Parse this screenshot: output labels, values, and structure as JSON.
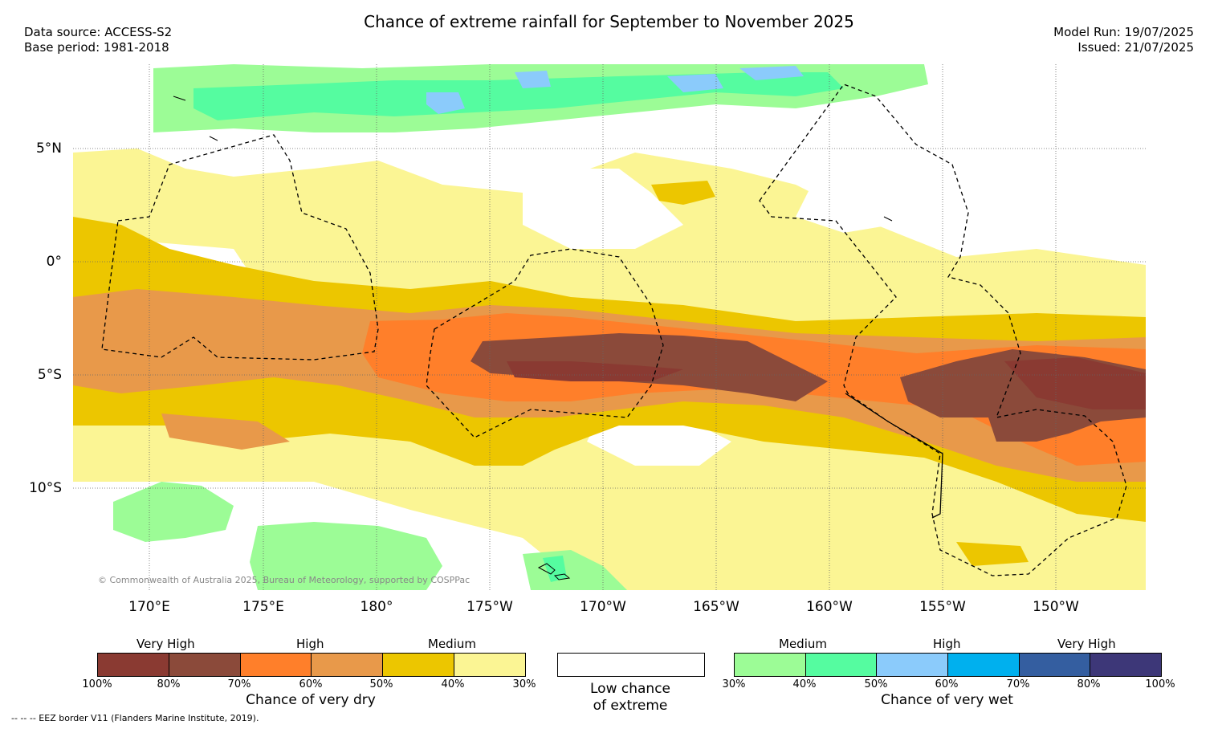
{
  "title": "Chance of extreme rainfall for September to November 2025",
  "data_source": "Data source: ACCESS-S2",
  "base_period": "Base period: 1981-2018",
  "model_run": "Model Run: 19/07/2025",
  "issued": "Issued: 21/07/2025",
  "lat_labels": [
    "5°N",
    "0°",
    "5°S",
    "10°S"
  ],
  "lon_labels": [
    "170°E",
    "175°E",
    "180°",
    "175°W",
    "170°W",
    "165°W",
    "160°W",
    "155°W",
    "150°W"
  ],
  "copyright": "© Commonwealth of Australia 2025, Bureau of Meteorology, supported by COSPPac",
  "footnote": "-- -- -- EEZ border V11 (Flanders Marine Institute, 2019).",
  "legend_dry": {
    "levels": [
      "Very High",
      "High",
      "Medium"
    ],
    "ticks": [
      "100%",
      "80%",
      "70%",
      "60%",
      "50%",
      "40%",
      "30%"
    ],
    "colors": [
      "#8a3a32",
      "#8b4a3a",
      "#ff7f2a",
      "#e8994a",
      "#ecc600",
      "#fbf594"
    ],
    "title": "Chance of very dry"
  },
  "legend_none": {
    "title_line1": "Low chance",
    "title_line2": "of extreme",
    "color": "#ffffff"
  },
  "legend_wet": {
    "levels": [
      "Medium",
      "High",
      "Very High"
    ],
    "ticks": [
      "30%",
      "40%",
      "50%",
      "60%",
      "70%",
      "80%",
      "100%"
    ],
    "colors": [
      "#9cfc96",
      "#55fca0",
      "#8bcbfb",
      "#00b0ee",
      "#345ea0",
      "#3d3778"
    ],
    "title": "Chance of very wet"
  }
}
